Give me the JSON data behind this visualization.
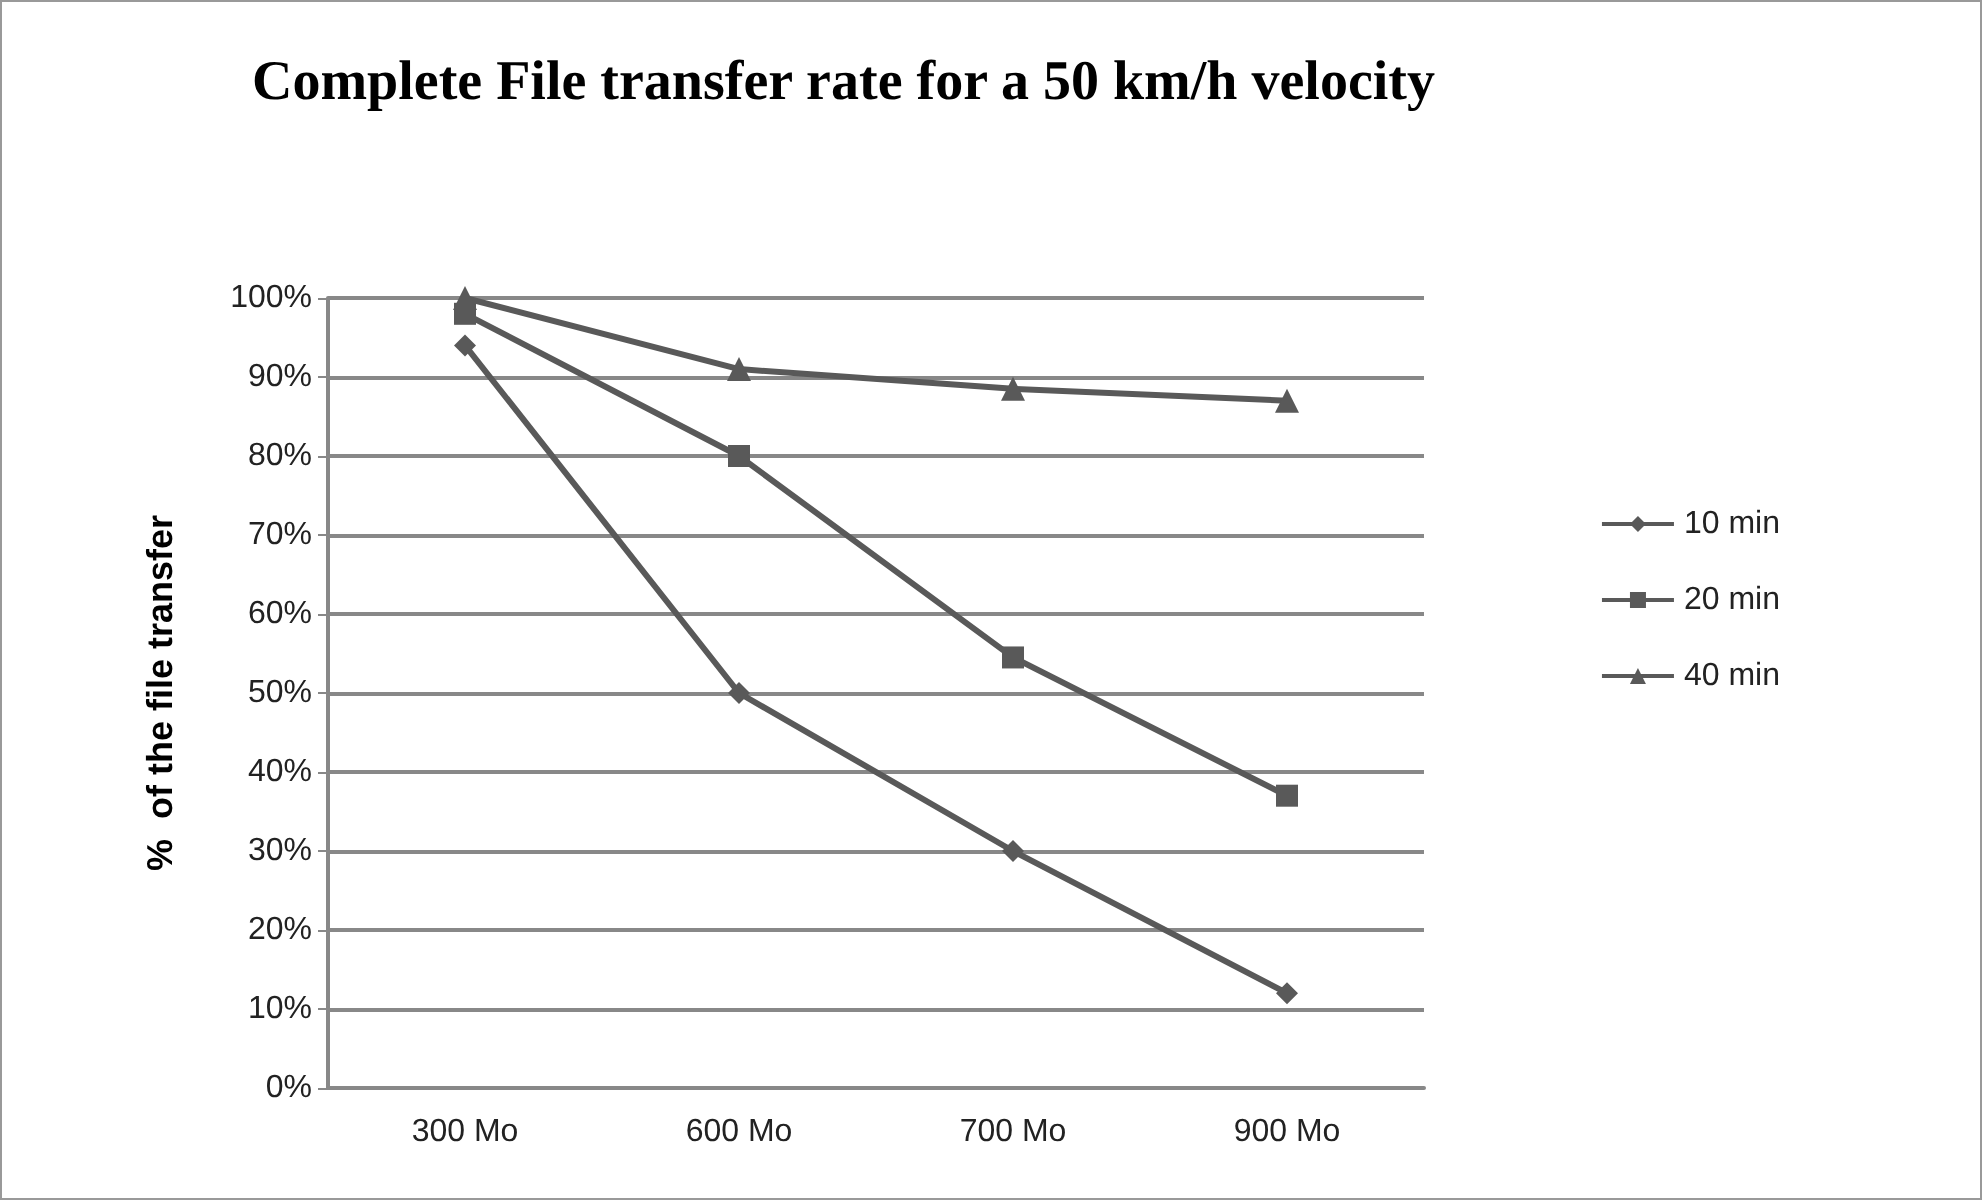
{
  "chart_data": {
    "type": "line",
    "title": "Complete File transfer rate for a 50 km/h velocity",
    "ylabel": "%  of the file transfer",
    "categories": [
      "300 Mo",
      "600 Mo",
      "700 Mo",
      "900 Mo"
    ],
    "series": [
      {
        "name": "10 min",
        "color": "#595959",
        "marker": "diamond",
        "values": [
          94,
          50,
          30,
          12
        ]
      },
      {
        "name": "20 min",
        "color": "#595959",
        "marker": "square",
        "values": [
          98,
          80,
          54.5,
          37
        ]
      },
      {
        "name": "40 min",
        "color": "#595959",
        "marker": "triangle",
        "values": [
          100,
          91,
          88.5,
          87
        ]
      }
    ],
    "ylim": [
      0,
      100
    ],
    "yticks": [
      {
        "value": 0,
        "label": "0%"
      },
      {
        "value": 10,
        "label": "10%"
      },
      {
        "value": 20,
        "label": "20%"
      },
      {
        "value": 30,
        "label": "30%"
      },
      {
        "value": 40,
        "label": "40%"
      },
      {
        "value": 50,
        "label": "50%"
      },
      {
        "value": 60,
        "label": "60%"
      },
      {
        "value": 70,
        "label": "70%"
      },
      {
        "value": 80,
        "label": "80%"
      },
      {
        "value": 90,
        "label": "90%"
      },
      {
        "value": 100,
        "label": "100%"
      }
    ],
    "grid": "y",
    "legend": "right",
    "line_style": "solid"
  }
}
